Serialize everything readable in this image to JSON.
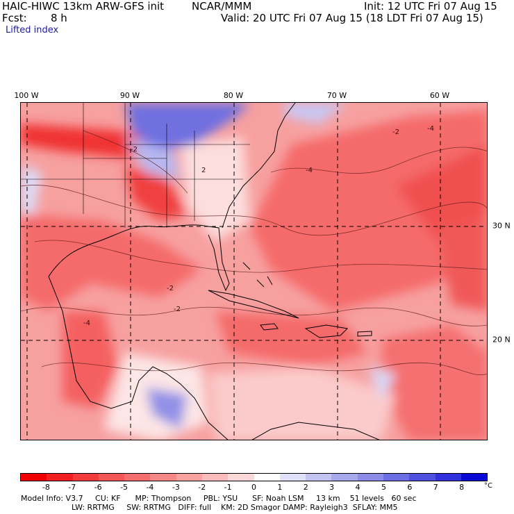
{
  "header": {
    "model": "HAIC-HIWC 13km ARW-GFS init",
    "org": "NCAR/MMM",
    "init": "Init: 12 UTC Fri 07 Aug 15",
    "fcst_label": "Fcst:",
    "fcst_value": "8 h",
    "valid": "Valid: 20 UTC Fri 07 Aug 15 (18 LDT Fri 07 Aug 15)",
    "field": "Lifted index"
  },
  "map": {
    "longitude_labels": [
      "100 W",
      "90 W",
      "80 W",
      "70 W",
      "60 W"
    ],
    "latitude_labels": [
      "30 N",
      "20 N"
    ],
    "contour_labels": [
      "-2",
      "-4",
      "-4",
      "-2",
      "2",
      "-2",
      "-4",
      "-2"
    ],
    "colors": {
      "strong_negative": "#f03030",
      "negative": "#f56a6a",
      "moderate_negative": "#f59090",
      "weak_negative": "#f8bcbc",
      "neutral": "#ffffff",
      "positive": "#b8b8f0",
      "strong_positive": "#5050e0"
    }
  },
  "colorbar": {
    "ticks": [
      "-8",
      "-7",
      "-6",
      "-5",
      "-4",
      "-3",
      "-2",
      "-1",
      "0",
      "1",
      "2",
      "3",
      "4",
      "5",
      "6",
      "7",
      "8"
    ],
    "unit": "°C",
    "colors": [
      "#f00000",
      "#f02020",
      "#f23c3c",
      "#f45656",
      "#f56e6e",
      "#f78888",
      "#f8a2a2",
      "#fabcbc",
      "#fcd8d8",
      "#ffffff",
      "#e0e0f8",
      "#c4c4f2",
      "#a8a8ec",
      "#8c8ce8",
      "#6e6ee4",
      "#5050e0",
      "#3030dc",
      "#0a0ad4"
    ]
  },
  "footer": {
    "line1": "Model Info: V3.7     CU: KF      MP: Thompson     PBL: YSU      SF: Noah LSM     13 km    51 levels   60 sec",
    "line2": "LW: RRTMG     SW: RRTMG   DIFF: full    KM: 2D Smagor DAMP: Rayleigh3  SFLAY: MM5"
  }
}
